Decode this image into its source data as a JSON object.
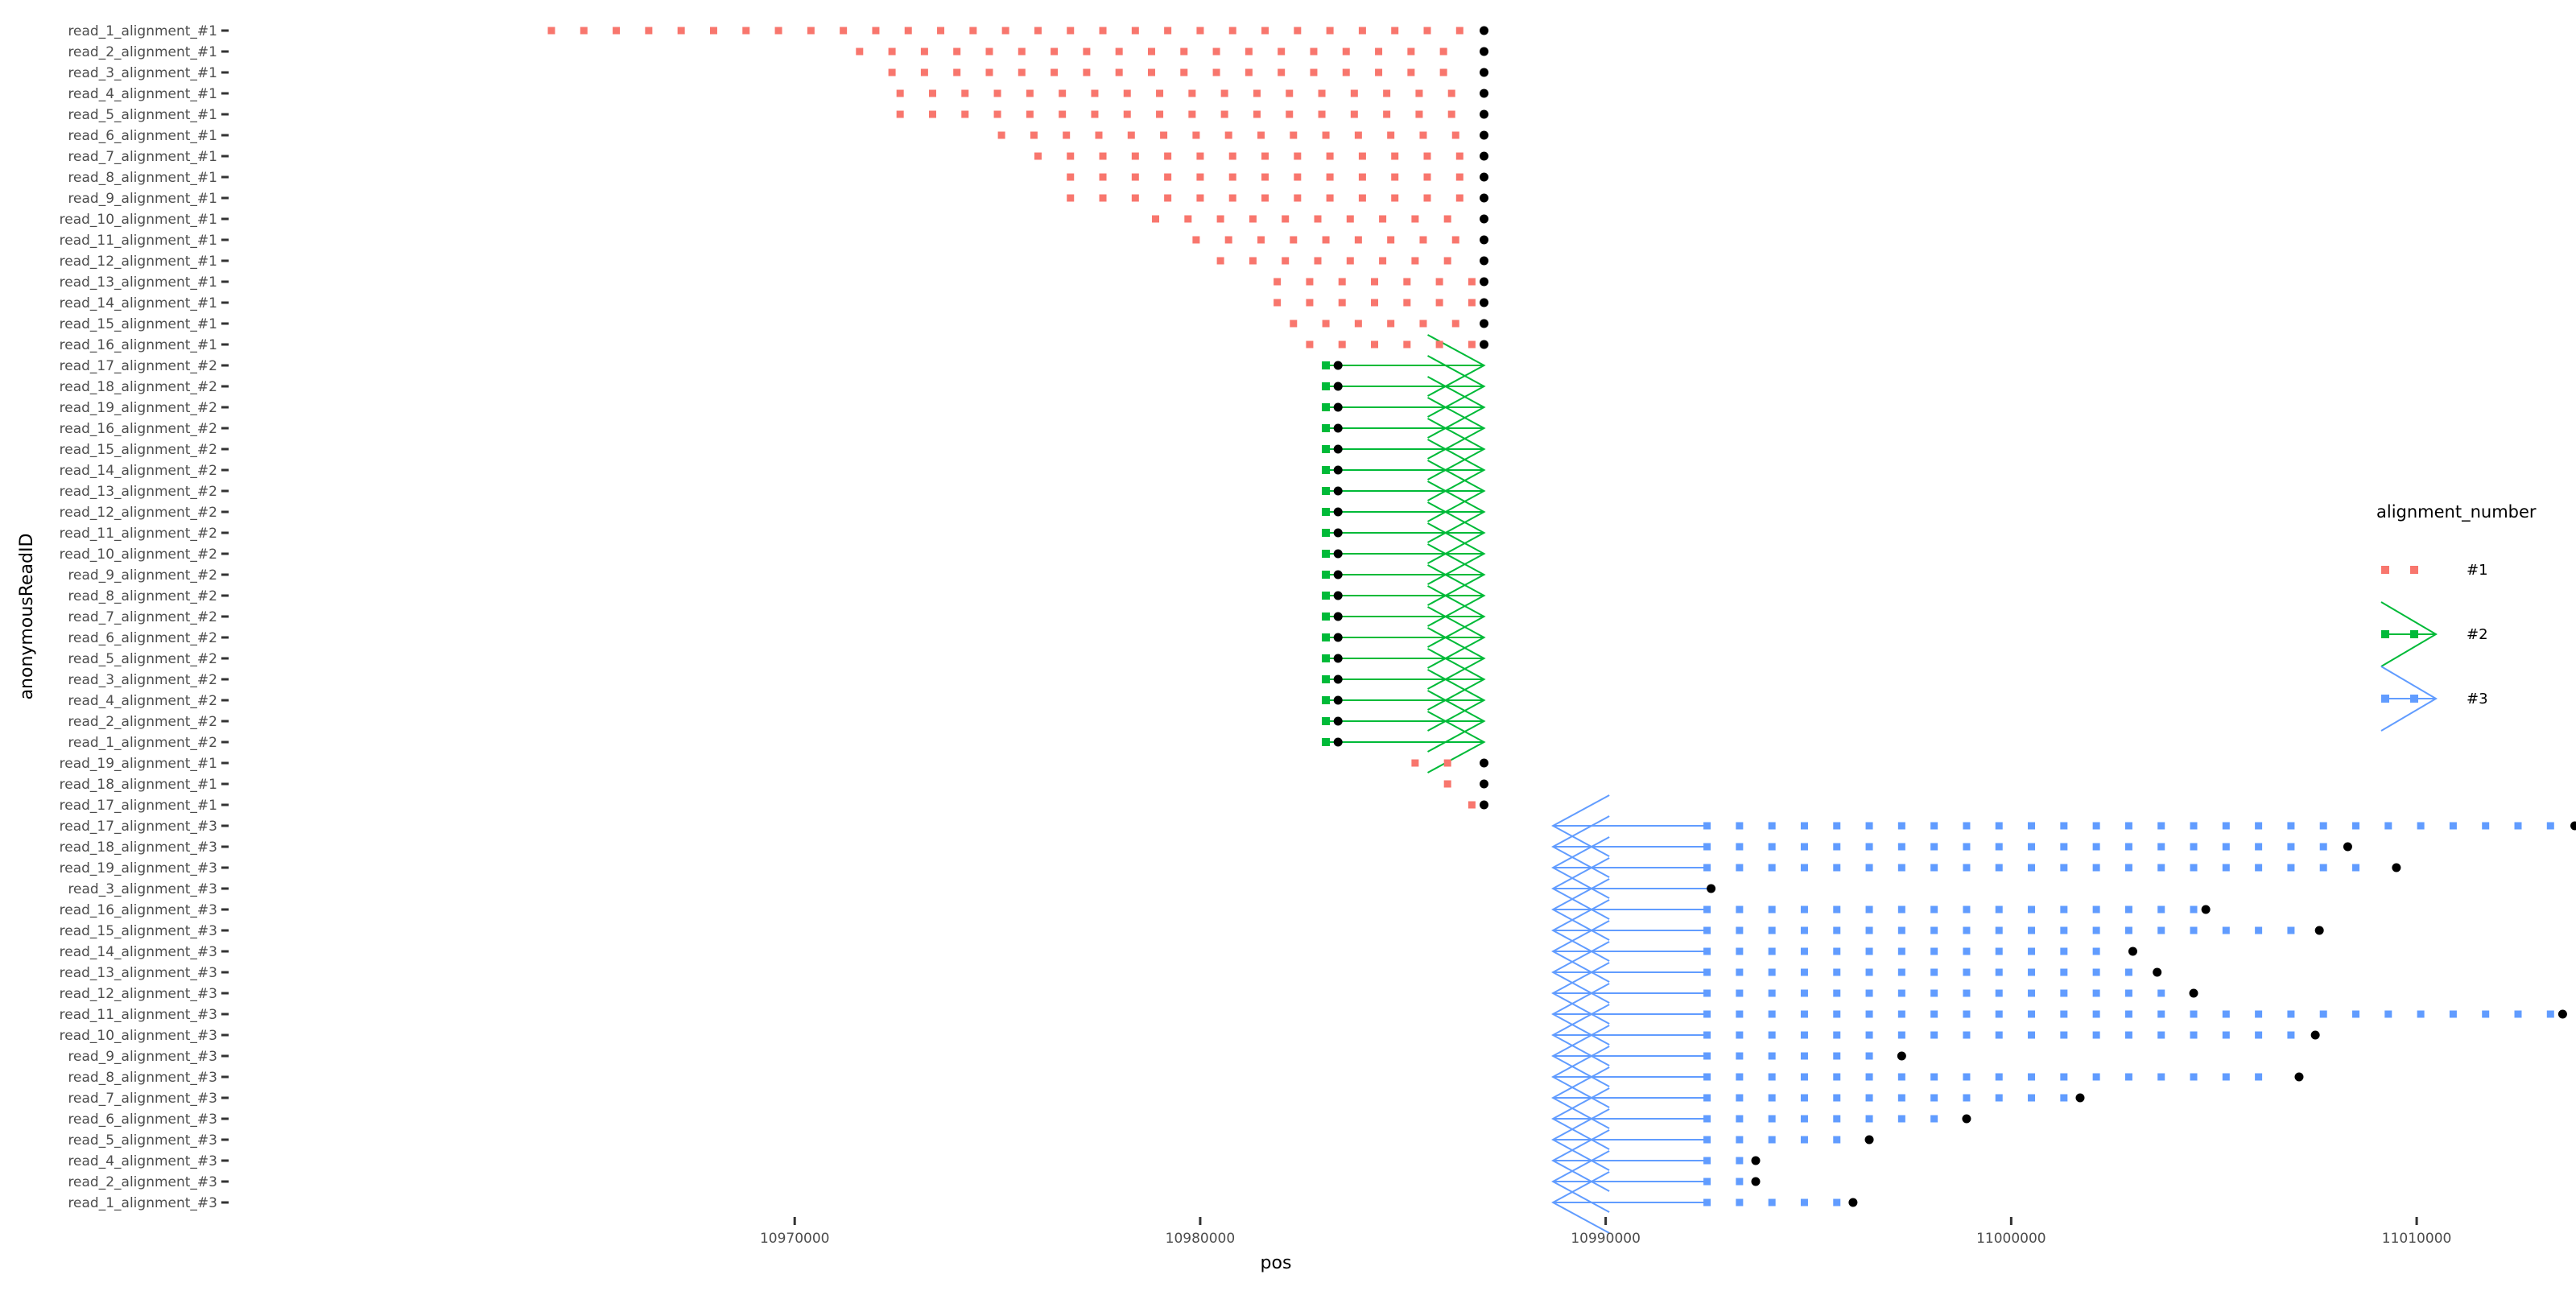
{
  "chart_data": {
    "type": "scatter",
    "xlabel": "pos",
    "ylabel": "anonymousReadID",
    "xlim": [
      10956000,
      11012500
    ],
    "x_ticks": [
      {
        "value": 10970000,
        "label": "10970000"
      },
      {
        "value": 10980000,
        "label": "10980000"
      },
      {
        "value": 10990000,
        "label": "10990000"
      },
      {
        "value": 11000000,
        "label": "11000000"
      },
      {
        "value": 11010000,
        "label": "11010000"
      }
    ],
    "grid": false,
    "legend": {
      "title": "alignment_number",
      "placement": "right",
      "entries": [
        {
          "label": "#1",
          "color": "#F8766D"
        },
        {
          "label": "#2",
          "color": "#00BA38"
        },
        {
          "label": "#3",
          "color": "#619CFF"
        }
      ]
    },
    "end_marker_color": "#000000",
    "reads": [
      {
        "label": "read_1_alignment_#1",
        "group": "#1",
        "start": 10964000,
        "end": 10987000
      },
      {
        "label": "read_2_alignment_#1",
        "group": "#1",
        "start": 10971600,
        "end": 10987000
      },
      {
        "label": "read_3_alignment_#1",
        "group": "#1",
        "start": 10972400,
        "end": 10987000
      },
      {
        "label": "read_4_alignment_#1",
        "group": "#1",
        "start": 10972600,
        "end": 10987000
      },
      {
        "label": "read_5_alignment_#1",
        "group": "#1",
        "start": 10972600,
        "end": 10987000
      },
      {
        "label": "read_6_alignment_#1",
        "group": "#1",
        "start": 10975100,
        "end": 10987000
      },
      {
        "label": "read_7_alignment_#1",
        "group": "#1",
        "start": 10976000,
        "end": 10987000
      },
      {
        "label": "read_8_alignment_#1",
        "group": "#1",
        "start": 10976800,
        "end": 10987000
      },
      {
        "label": "read_9_alignment_#1",
        "group": "#1",
        "start": 10976800,
        "end": 10987000
      },
      {
        "label": "read_10_alignment_#1",
        "group": "#1",
        "start": 10978900,
        "end": 10987000
      },
      {
        "label": "read_11_alignment_#1",
        "group": "#1",
        "start": 10979900,
        "end": 10987000
      },
      {
        "label": "read_12_alignment_#1",
        "group": "#1",
        "start": 10980500,
        "end": 10987000
      },
      {
        "label": "read_13_alignment_#1",
        "group": "#1",
        "start": 10981900,
        "end": 10987000
      },
      {
        "label": "read_14_alignment_#1",
        "group": "#1",
        "start": 10981900,
        "end": 10987000
      },
      {
        "label": "read_15_alignment_#1",
        "group": "#1",
        "start": 10982300,
        "end": 10987000
      },
      {
        "label": "read_16_alignment_#1",
        "group": "#1",
        "start": 10982700,
        "end": 10987000
      },
      {
        "label": "read_17_alignment_#2",
        "group": "#2",
        "start": 10983100,
        "end": 10983400
      },
      {
        "label": "read_18_alignment_#2",
        "group": "#2",
        "start": 10983100,
        "end": 10983400
      },
      {
        "label": "read_19_alignment_#2",
        "group": "#2",
        "start": 10983100,
        "end": 10983400
      },
      {
        "label": "read_16_alignment_#2",
        "group": "#2",
        "start": 10983100,
        "end": 10983400
      },
      {
        "label": "read_15_alignment_#2",
        "group": "#2",
        "start": 10983100,
        "end": 10983400
      },
      {
        "label": "read_14_alignment_#2",
        "group": "#2",
        "start": 10983100,
        "end": 10983400
      },
      {
        "label": "read_13_alignment_#2",
        "group": "#2",
        "start": 10983100,
        "end": 10983400
      },
      {
        "label": "read_12_alignment_#2",
        "group": "#2",
        "start": 10983100,
        "end": 10983400
      },
      {
        "label": "read_11_alignment_#2",
        "group": "#2",
        "start": 10983100,
        "end": 10983400
      },
      {
        "label": "read_10_alignment_#2",
        "group": "#2",
        "start": 10983100,
        "end": 10983400
      },
      {
        "label": "read_9_alignment_#2",
        "group": "#2",
        "start": 10983100,
        "end": 10983400
      },
      {
        "label": "read_8_alignment_#2",
        "group": "#2",
        "start": 10983100,
        "end": 10983400
      },
      {
        "label": "read_7_alignment_#2",
        "group": "#2",
        "start": 10983100,
        "end": 10983400
      },
      {
        "label": "read_6_alignment_#2",
        "group": "#2",
        "start": 10983100,
        "end": 10983400
      },
      {
        "label": "read_5_alignment_#2",
        "group": "#2",
        "start": 10983100,
        "end": 10983400
      },
      {
        "label": "read_3_alignment_#2",
        "group": "#2",
        "start": 10983100,
        "end": 10983400
      },
      {
        "label": "read_4_alignment_#2",
        "group": "#2",
        "start": 10983100,
        "end": 10983400
      },
      {
        "label": "read_2_alignment_#2",
        "group": "#2",
        "start": 10983100,
        "end": 10983400
      },
      {
        "label": "read_1_alignment_#2",
        "group": "#2",
        "start": 10983100,
        "end": 10983400
      },
      {
        "label": "read_19_alignment_#1",
        "group": "#1",
        "start": 10985300,
        "end": 10987000
      },
      {
        "label": "read_18_alignment_#1",
        "group": "#1",
        "start": 10986100,
        "end": 10987000
      },
      {
        "label": "read_17_alignment_#1",
        "group": "#1",
        "start": 10986700,
        "end": 10987000
      },
      {
        "label": "read_17_alignment_#3",
        "group": "#3",
        "start": 10992500,
        "end": 11013900
      },
      {
        "label": "read_18_alignment_#3",
        "group": "#3",
        "start": 10992500,
        "end": 11008300
      },
      {
        "label": "read_19_alignment_#3",
        "group": "#3",
        "start": 10992500,
        "end": 11009500
      },
      {
        "label": "read_3_alignment_#3",
        "group": "#3",
        "start": 10992500,
        "end": 10992600
      },
      {
        "label": "read_16_alignment_#3",
        "group": "#3",
        "start": 10992500,
        "end": 11004800
      },
      {
        "label": "read_15_alignment_#3",
        "group": "#3",
        "start": 10992500,
        "end": 11007600
      },
      {
        "label": "read_14_alignment_#3",
        "group": "#3",
        "start": 10992500,
        "end": 11003000
      },
      {
        "label": "read_13_alignment_#3",
        "group": "#3",
        "start": 10992500,
        "end": 11003600
      },
      {
        "label": "read_12_alignment_#3",
        "group": "#3",
        "start": 10992500,
        "end": 11004500
      },
      {
        "label": "read_11_alignment_#3",
        "group": "#3",
        "start": 10992500,
        "end": 11013600
      },
      {
        "label": "read_10_alignment_#3",
        "group": "#3",
        "start": 10992500,
        "end": 11007500
      },
      {
        "label": "read_9_alignment_#3",
        "group": "#3",
        "start": 10992500,
        "end": 10997300
      },
      {
        "label": "read_8_alignment_#3",
        "group": "#3",
        "start": 10992500,
        "end": 11007100
      },
      {
        "label": "read_7_alignment_#3",
        "group": "#3",
        "start": 10992500,
        "end": 11001700
      },
      {
        "label": "read_6_alignment_#3",
        "group": "#3",
        "start": 10992500,
        "end": 10998900
      },
      {
        "label": "read_5_alignment_#3",
        "group": "#3",
        "start": 10992500,
        "end": 10996500
      },
      {
        "label": "read_4_alignment_#3",
        "group": "#3",
        "start": 10992500,
        "end": 10993700
      },
      {
        "label": "read_2_alignment_#3",
        "group": "#3",
        "start": 10992500,
        "end": 10993700
      },
      {
        "label": "read_1_alignment_#3",
        "group": "#3",
        "start": 10992500,
        "end": 10996100
      }
    ]
  }
}
